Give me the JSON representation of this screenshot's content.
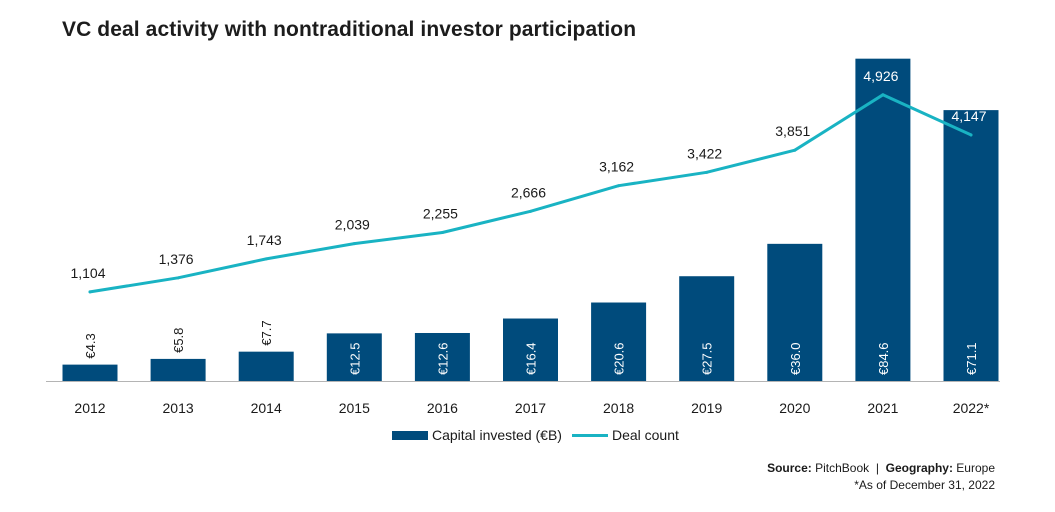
{
  "title": "VC deal activity with nontraditional investor participation",
  "colors": {
    "bar": "#004b7c",
    "line": "#19b3c3",
    "axis": "#b4b4b4"
  },
  "chart_data": {
    "type": "bar",
    "categories": [
      "2012",
      "2013",
      "2014",
      "2015",
      "2016",
      "2017",
      "2018",
      "2019",
      "2020",
      "2021",
      "2022*"
    ],
    "series": [
      {
        "name": "Capital invested (€B)",
        "type": "bar",
        "values": [
          4.3,
          5.8,
          7.7,
          12.5,
          12.6,
          16.4,
          20.6,
          27.5,
          36.0,
          84.6,
          71.1
        ],
        "labels": [
          "€4.3",
          "€5.8",
          "€7.7",
          "€12.5",
          "€12.6",
          "€16.4",
          "€20.6",
          "€27.5",
          "€36.0",
          "€84.6",
          "€71.1"
        ]
      },
      {
        "name": "Deal count",
        "type": "line",
        "values": [
          1104,
          1376,
          1743,
          2039,
          2255,
          2666,
          3162,
          3422,
          3851,
          4926,
          4147
        ],
        "labels": [
          "1,104",
          "1,376",
          "1,743",
          "2,039",
          "2,255",
          "2,666",
          "3,162",
          "3,422",
          "3,851",
          "4,926",
          "4,147"
        ]
      }
    ],
    "legend_position": "bottom",
    "grid": false
  },
  "legend": {
    "bar_label": "Capital invested (€B)",
    "line_label": "Deal count"
  },
  "source": {
    "source_label": "Source:",
    "source_value": "PitchBook",
    "separator": "|",
    "geo_label": "Geography:",
    "geo_value": "Europe",
    "footnote": "*As of December 31, 2022"
  }
}
